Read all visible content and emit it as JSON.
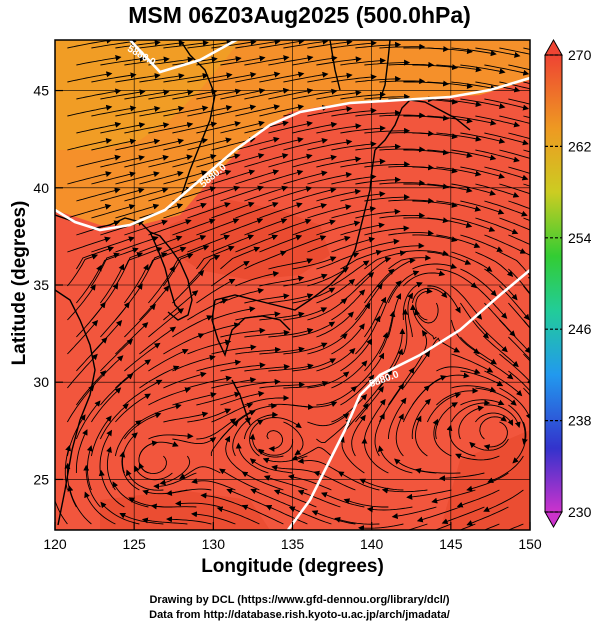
{
  "title": "MSM 06Z03Aug2025 (500.0hPa)",
  "map": {
    "x_label": "Longitude (degrees)",
    "y_label": "Latitude  (degrees)",
    "lon_range": [
      120,
      150
    ],
    "lat_range": [
      22.4,
      47.6
    ],
    "lon_ticks": [
      "120",
      "125",
      "130",
      "135",
      "140",
      "145",
      "150"
    ],
    "lat_ticks": [
      "25",
      "30",
      "35",
      "40",
      "45"
    ],
    "grid": true,
    "contour_labels": [
      "5880.0",
      "5880.0",
      "5880.0"
    ],
    "colors": {
      "field_main": "#f2563d",
      "field_warm": "#e84a2e",
      "field_north": "#f5902a",
      "field_northwest": "#f0a025",
      "contour": "#ffffff",
      "coastline": "#000000",
      "streamline": "#000000"
    }
  },
  "colorbar": {
    "min": 230,
    "max": 270,
    "tick_labels": [
      "270",
      "262",
      "254",
      "246",
      "238",
      "230"
    ],
    "colors": [
      "#cc33cc",
      "#3333cc",
      "#2299ee",
      "#22cc99",
      "#33cc33",
      "#cccc22",
      "#ee9922",
      "#ee4433"
    ]
  },
  "credits": {
    "line1": "Drawing by DCL (https://www.gfd-dennou.org/library/dcl/)",
    "line2": "Data from http://database.rish.kyoto-u.ac.jp/arch/jmadata/"
  }
}
